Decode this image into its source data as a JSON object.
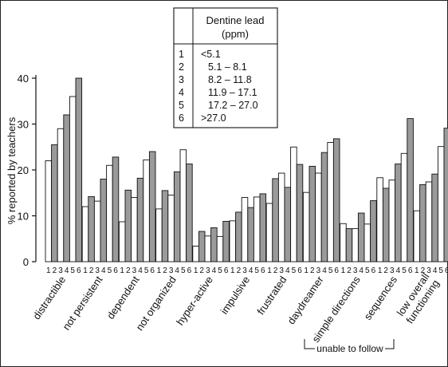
{
  "chart_data": {
    "type": "bar",
    "ylabel": "% reported by teachers",
    "ylim": [
      0,
      40
    ],
    "yticks": [
      0,
      10,
      20,
      30,
      40
    ],
    "group_sublabel": "12 34 56",
    "bar_labels": [
      "1",
      "2",
      "3",
      "4",
      "5",
      "6"
    ],
    "categories": [
      "distractible",
      "not persistent",
      "dependent",
      "not organized",
      "hyper-active",
      "impulsive",
      "frustrated",
      "daydreamer",
      "simple directions",
      "sequences",
      "low overall functioning"
    ],
    "category_lines": [
      [
        "distractible"
      ],
      [
        "not persistent"
      ],
      [
        "dependent"
      ],
      [
        "not organized"
      ],
      [
        "hyper-active"
      ],
      [
        "impulsive"
      ],
      [
        "frustrated"
      ],
      [
        "daydreamer"
      ],
      [
        "simple directions"
      ],
      [
        "sequences"
      ],
      [
        "low overall",
        "functioning"
      ]
    ],
    "values": [
      [
        22,
        25.5,
        29,
        32,
        36,
        40
      ],
      [
        12,
        14.2,
        13.2,
        18,
        21,
        22.8
      ],
      [
        8.7,
        15.6,
        14,
        18.2,
        22.2,
        24
      ],
      [
        11.5,
        15.5,
        14.5,
        19.6,
        24.4,
        21.3
      ],
      [
        3.4,
        6.6,
        5.6,
        7.4,
        5.5,
        8.8
      ],
      [
        8.9,
        10.8,
        14,
        11.8,
        14.1,
        14.8
      ],
      [
        12.7,
        18.1,
        19.3,
        16.2,
        25,
        21.2
      ],
      [
        15.1,
        20.8,
        19.3,
        23.8,
        26,
        26.8
      ],
      [
        8.3,
        7.2,
        7.2,
        10.6,
        8.2,
        13.3
      ],
      [
        18.3,
        16,
        17.8,
        21.3,
        23.6,
        31.2
      ],
      [
        11.1,
        16.8,
        17.4,
        19.1,
        25.1,
        29.1
      ]
    ],
    "bar_fills": [
      "#ffffff",
      "#9a9a9a",
      "#ffffff",
      "#9a9a9a",
      "#ffffff",
      "#9a9a9a"
    ],
    "bracket_label": "unable to follow",
    "legend": {
      "title": "Dentine lead",
      "unit": "(ppm)",
      "items": [
        {
          "key": "1",
          "range": "<5.1"
        },
        {
          "key": "2",
          "range": "5.1 – 8.1"
        },
        {
          "key": "3",
          "range": "8.2 – 11.8"
        },
        {
          "key": "4",
          "range": "11.9 – 17.1"
        },
        {
          "key": "5",
          "range": "17.2 – 27.0"
        },
        {
          "key": "6",
          "range": ">27.0"
        }
      ]
    }
  }
}
